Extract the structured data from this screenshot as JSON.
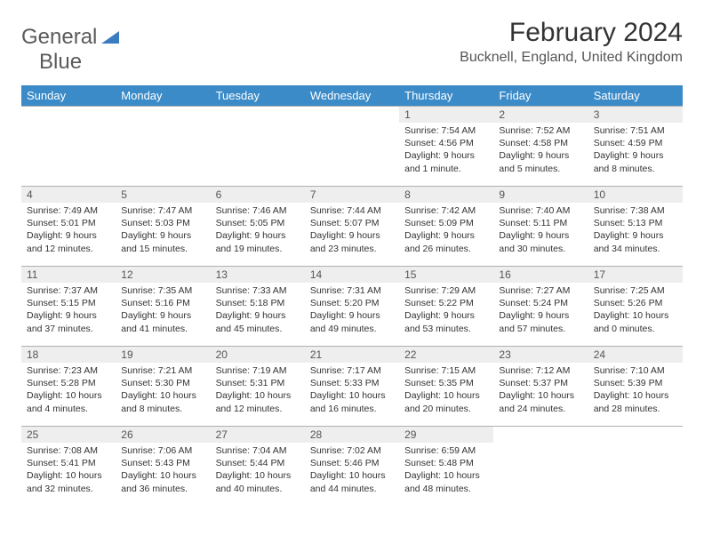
{
  "logo": {
    "line1": "General",
    "line2": "Blue"
  },
  "title": "February 2024",
  "location": "Bucknell, England, United Kingdom",
  "colors": {
    "header_bg": "#3b8bc8",
    "header_text": "#ffffff",
    "daynum_bg": "#eeeeee",
    "border": "#b0b0b0",
    "logo_gray": "#5a5a5a",
    "logo_blue": "#3b7bbf"
  },
  "weekdays": [
    "Sunday",
    "Monday",
    "Tuesday",
    "Wednesday",
    "Thursday",
    "Friday",
    "Saturday"
  ],
  "grid": [
    [
      null,
      null,
      null,
      null,
      {
        "n": "1",
        "sr": "7:54 AM",
        "ss": "4:56 PM",
        "dl": "9 hours and 1 minute."
      },
      {
        "n": "2",
        "sr": "7:52 AM",
        "ss": "4:58 PM",
        "dl": "9 hours and 5 minutes."
      },
      {
        "n": "3",
        "sr": "7:51 AM",
        "ss": "4:59 PM",
        "dl": "9 hours and 8 minutes."
      }
    ],
    [
      {
        "n": "4",
        "sr": "7:49 AM",
        "ss": "5:01 PM",
        "dl": "9 hours and 12 minutes."
      },
      {
        "n": "5",
        "sr": "7:47 AM",
        "ss": "5:03 PM",
        "dl": "9 hours and 15 minutes."
      },
      {
        "n": "6",
        "sr": "7:46 AM",
        "ss": "5:05 PM",
        "dl": "9 hours and 19 minutes."
      },
      {
        "n": "7",
        "sr": "7:44 AM",
        "ss": "5:07 PM",
        "dl": "9 hours and 23 minutes."
      },
      {
        "n": "8",
        "sr": "7:42 AM",
        "ss": "5:09 PM",
        "dl": "9 hours and 26 minutes."
      },
      {
        "n": "9",
        "sr": "7:40 AM",
        "ss": "5:11 PM",
        "dl": "9 hours and 30 minutes."
      },
      {
        "n": "10",
        "sr": "7:38 AM",
        "ss": "5:13 PM",
        "dl": "9 hours and 34 minutes."
      }
    ],
    [
      {
        "n": "11",
        "sr": "7:37 AM",
        "ss": "5:15 PM",
        "dl": "9 hours and 37 minutes."
      },
      {
        "n": "12",
        "sr": "7:35 AM",
        "ss": "5:16 PM",
        "dl": "9 hours and 41 minutes."
      },
      {
        "n": "13",
        "sr": "7:33 AM",
        "ss": "5:18 PM",
        "dl": "9 hours and 45 minutes."
      },
      {
        "n": "14",
        "sr": "7:31 AM",
        "ss": "5:20 PM",
        "dl": "9 hours and 49 minutes."
      },
      {
        "n": "15",
        "sr": "7:29 AM",
        "ss": "5:22 PM",
        "dl": "9 hours and 53 minutes."
      },
      {
        "n": "16",
        "sr": "7:27 AM",
        "ss": "5:24 PM",
        "dl": "9 hours and 57 minutes."
      },
      {
        "n": "17",
        "sr": "7:25 AM",
        "ss": "5:26 PM",
        "dl": "10 hours and 0 minutes."
      }
    ],
    [
      {
        "n": "18",
        "sr": "7:23 AM",
        "ss": "5:28 PM",
        "dl": "10 hours and 4 minutes."
      },
      {
        "n": "19",
        "sr": "7:21 AM",
        "ss": "5:30 PM",
        "dl": "10 hours and 8 minutes."
      },
      {
        "n": "20",
        "sr": "7:19 AM",
        "ss": "5:31 PM",
        "dl": "10 hours and 12 minutes."
      },
      {
        "n": "21",
        "sr": "7:17 AM",
        "ss": "5:33 PM",
        "dl": "10 hours and 16 minutes."
      },
      {
        "n": "22",
        "sr": "7:15 AM",
        "ss": "5:35 PM",
        "dl": "10 hours and 20 minutes."
      },
      {
        "n": "23",
        "sr": "7:12 AM",
        "ss": "5:37 PM",
        "dl": "10 hours and 24 minutes."
      },
      {
        "n": "24",
        "sr": "7:10 AM",
        "ss": "5:39 PM",
        "dl": "10 hours and 28 minutes."
      }
    ],
    [
      {
        "n": "25",
        "sr": "7:08 AM",
        "ss": "5:41 PM",
        "dl": "10 hours and 32 minutes."
      },
      {
        "n": "26",
        "sr": "7:06 AM",
        "ss": "5:43 PM",
        "dl": "10 hours and 36 minutes."
      },
      {
        "n": "27",
        "sr": "7:04 AM",
        "ss": "5:44 PM",
        "dl": "10 hours and 40 minutes."
      },
      {
        "n": "28",
        "sr": "7:02 AM",
        "ss": "5:46 PM",
        "dl": "10 hours and 44 minutes."
      },
      {
        "n": "29",
        "sr": "6:59 AM",
        "ss": "5:48 PM",
        "dl": "10 hours and 48 minutes."
      },
      null,
      null
    ]
  ],
  "labels": {
    "sunrise": "Sunrise:",
    "sunset": "Sunset:",
    "daylight": "Daylight:"
  }
}
